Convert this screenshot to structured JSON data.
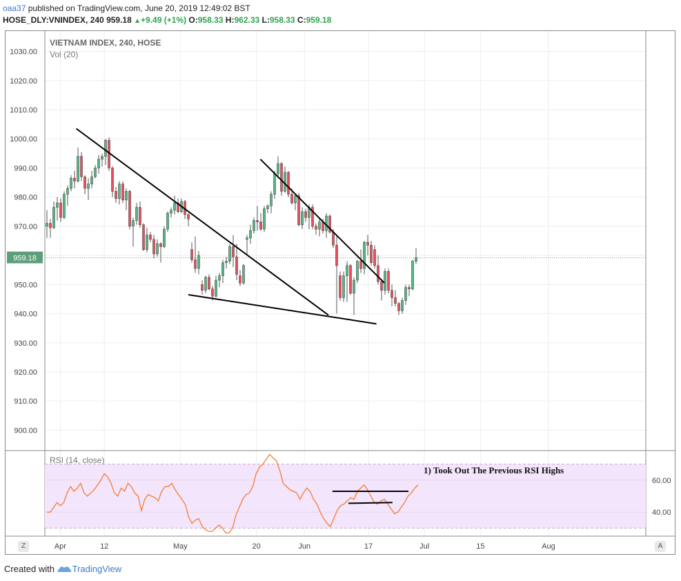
{
  "header": {
    "user": "oaa37",
    "published": "published on TradingView.com, June 20, 2019 12:49:02 BST",
    "symbol": "HOSE_DLY:VNINDEX, 240",
    "last": "959.18",
    "change": "+9.49 (+1%)",
    "o_label": "O:",
    "o": "958.33",
    "h_label": "H:",
    "h": "962.33",
    "l_label": "L:",
    "l": "958.33",
    "c_label": "C:",
    "c": "959.18"
  },
  "footer": {
    "prefix": "Created with",
    "brand": "TradingView"
  },
  "corner_buttons": {
    "left": "Z",
    "right": "A"
  },
  "colors": {
    "up": "#53b987",
    "down": "#eb4d5c",
    "rsi": "#f57c33",
    "rsi_band": "#f3e5fb",
    "price_badge": "#5f9e7c",
    "trendline": "#000000"
  },
  "chart_data": [
    {
      "type": "candlestick",
      "title": "VIETNAM INDEX, 240, HOSE",
      "subtitle": "Vol (20)",
      "ylim": [
        893,
        1037
      ],
      "y_ticks": [
        "1030.00",
        "1020.00",
        "1010.00",
        "1000.00",
        "990.00",
        "980.00",
        "970.00",
        "960.00",
        "950.00",
        "940.00",
        "930.00",
        "920.00",
        "910.00",
        "900.00"
      ],
      "x_ticks": [
        "Apr",
        "12",
        "May",
        "20",
        "Jun",
        "17",
        "Jul",
        "15",
        "Aug"
      ],
      "last_price_label": "959.18",
      "grid": true,
      "candles": [
        [
          970.0,
          975.5,
          966.0,
          971.0
        ],
        [
          971.0,
          972.5,
          966.0,
          969.5
        ],
        [
          969.5,
          978.5,
          969.0,
          976.5
        ],
        [
          976.5,
          980.0,
          972.0,
          978.0
        ],
        [
          978.0,
          979.5,
          971.5,
          973.0
        ],
        [
          973.0,
          982.0,
          972.5,
          981.0
        ],
        [
          981.0,
          984.0,
          977.0,
          983.0
        ],
        [
          983.0,
          987.5,
          982.0,
          986.5
        ],
        [
          986.5,
          989.0,
          983.0,
          985.5
        ],
        [
          985.5,
          997.0,
          985.0,
          994.0
        ],
        [
          994.0,
          995.5,
          985.5,
          987.0
        ],
        [
          987.0,
          987.5,
          981.0,
          983.0
        ],
        [
          983.0,
          986.5,
          979.0,
          984.5
        ],
        [
          984.5,
          989.0,
          983.0,
          987.0
        ],
        [
          987.0,
          991.0,
          986.5,
          990.0
        ],
        [
          990.0,
          994.5,
          988.0,
          993.0
        ],
        [
          993.0,
          995.0,
          990.5,
          994.0
        ],
        [
          994.0,
          1000.0,
          991.0,
          999.5
        ],
        [
          999.5,
          1000.5,
          989.0,
          990.0
        ],
        [
          990.0,
          990.5,
          980.0,
          982.0
        ],
        [
          982.0,
          983.5,
          978.0,
          979.5
        ],
        [
          979.5,
          985.5,
          977.5,
          984.5
        ],
        [
          984.5,
          985.5,
          978.0,
          979.0
        ],
        [
          979.0,
          983.0,
          975.5,
          982.0
        ],
        [
          982.0,
          982.5,
          969.0,
          970.0
        ],
        [
          970.0,
          973.0,
          963.0,
          972.0
        ],
        [
          972.0,
          978.0,
          970.5,
          976.5
        ],
        [
          976.5,
          978.5,
          969.5,
          970.5
        ],
        [
          970.5,
          971.0,
          961.5,
          962.0
        ],
        [
          962.0,
          969.5,
          961.0,
          967.0
        ],
        [
          967.0,
          968.0,
          964.5,
          965.5
        ],
        [
          965.5,
          967.0,
          959.0,
          960.5
        ],
        [
          960.5,
          965.5,
          959.5,
          964.0
        ],
        [
          964.0,
          964.5,
          957.5,
          963.0
        ],
        [
          963.0,
          970.0,
          962.5,
          969.0
        ],
        [
          969.0,
          975.0,
          968.0,
          974.5
        ],
        [
          974.5,
          976.5,
          973.0,
          975.5
        ],
        [
          975.5,
          980.5,
          974.0,
          978.0
        ],
        [
          978.0,
          979.5,
          974.5,
          975.0
        ],
        [
          975.0,
          979.5,
          974.5,
          978.5
        ],
        [
          978.5,
          979.0,
          972.5,
          974.0
        ],
        [
          974.0,
          974.5,
          970.0,
          972.5
        ],
        [
          962.0,
          964.5,
          957.5,
          958.5
        ],
        [
          958.5,
          966.5,
          954.0,
          955.5
        ],
        [
          955.5,
          961.5,
          953.5,
          960.0
        ],
        [
          950.0,
          951.5,
          946.5,
          948.0
        ],
        [
          948.0,
          953.0,
          947.0,
          952.5
        ],
        [
          952.5,
          953.5,
          948.0,
          948.5
        ],
        [
          948.5,
          949.5,
          944.5,
          946.0
        ],
        [
          946.0,
          953.0,
          945.5,
          951.5
        ],
        [
          951.5,
          954.0,
          949.0,
          953.0
        ],
        [
          953.0,
          958.5,
          950.5,
          957.5
        ],
        [
          957.5,
          959.5,
          955.5,
          958.0
        ],
        [
          958.0,
          964.0,
          957.0,
          963.0
        ],
        [
          963.0,
          967.0,
          956.0,
          959.5
        ],
        [
          959.5,
          964.0,
          951.5,
          953.5
        ],
        [
          953.0,
          955.0,
          949.5,
          950.5
        ],
        [
          950.5,
          957.0,
          950.0,
          956.5
        ],
        [
          965.5,
          967.0,
          960.5,
          966.0
        ],
        [
          966.0,
          970.5,
          964.0,
          968.5
        ],
        [
          968.5,
          973.0,
          967.5,
          972.0
        ],
        [
          972.0,
          977.0,
          968.5,
          971.5
        ],
        [
          971.5,
          974.5,
          968.5,
          969.0
        ],
        [
          969.0,
          977.0,
          968.0,
          976.0
        ],
        [
          976.0,
          977.5,
          974.5,
          977.0
        ],
        [
          977.0,
          982.0,
          974.5,
          981.0
        ],
        [
          981.0,
          989.0,
          979.5,
          988.0
        ],
        [
          988.0,
          994.0,
          986.5,
          991.5
        ],
        [
          991.5,
          992.0,
          980.5,
          982.0
        ],
        [
          982.0,
          990.5,
          981.5,
          988.5
        ],
        [
          988.5,
          989.0,
          980.0,
          981.0
        ],
        [
          981.0,
          983.0,
          977.5,
          978.0
        ],
        [
          978.0,
          981.0,
          975.5,
          980.5
        ],
        [
          980.5,
          981.5,
          970.0,
          970.5
        ],
        [
          970.5,
          976.5,
          969.0,
          975.0
        ],
        [
          975.0,
          976.0,
          971.5,
          973.0
        ],
        [
          973.0,
          977.5,
          969.0,
          976.5
        ],
        [
          976.5,
          977.5,
          969.0,
          970.0
        ],
        [
          970.0,
          971.0,
          967.0,
          969.0
        ],
        [
          969.0,
          973.0,
          966.5,
          971.5
        ],
        [
          971.5,
          972.5,
          967.5,
          968.5
        ],
        [
          968.5,
          974.5,
          966.0,
          973.5
        ],
        [
          973.5,
          974.0,
          967.5,
          968.0
        ],
        [
          968.0,
          969.0,
          962.5,
          963.5
        ],
        [
          963.5,
          966.5,
          940.0,
          956.5
        ],
        [
          953.0,
          954.5,
          944.5,
          945.5
        ],
        [
          945.5,
          954.5,
          944.0,
          953.0
        ],
        [
          953.0,
          958.0,
          944.0,
          956.5
        ],
        [
          956.5,
          957.0,
          946.5,
          947.0
        ],
        [
          947.0,
          952.5,
          939.5,
          951.5
        ],
        [
          951.5,
          958.5,
          950.5,
          958.0
        ],
        [
          958.0,
          962.0,
          954.0,
          955.5
        ],
        [
          955.5,
          965.0,
          953.5,
          964.5
        ],
        [
          964.5,
          967.0,
          960.0,
          963.5
        ],
        [
          963.5,
          965.0,
          956.5,
          957.5
        ],
        [
          962.0,
          963.5,
          955.5,
          956.5
        ],
        [
          956.5,
          960.0,
          950.0,
          951.0
        ],
        [
          951.0,
          952.0,
          944.5,
          948.0
        ],
        [
          948.0,
          955.5,
          946.5,
          954.5
        ],
        [
          954.5,
          955.5,
          947.0,
          948.0
        ],
        [
          948.0,
          950.0,
          942.5,
          945.5
        ],
        [
          945.5,
          948.0,
          942.5,
          943.5
        ],
        [
          943.5,
          944.0,
          939.5,
          941.0
        ],
        [
          941.0,
          945.5,
          940.0,
          944.5
        ],
        [
          944.5,
          950.0,
          943.0,
          949.0
        ],
        [
          949.0,
          950.0,
          946.0,
          948.5
        ],
        [
          948.5,
          958.5,
          948.0,
          958.0
        ],
        [
          958.0,
          962.5,
          957.0,
          959.2
        ]
      ],
      "trendlines": [
        {
          "from": [
            "Apr 5",
            1003.5
          ],
          "to": [
            "Jun 7",
            939.5
          ]
        },
        {
          "from": [
            "May 3",
            946.5
          ],
          "to": [
            "Jun 19",
            936.5
          ]
        },
        {
          "from": [
            "May 21",
            993.0
          ],
          "to": [
            "Jun 21",
            950.5
          ]
        }
      ]
    },
    {
      "type": "line",
      "title": "RSI (14, close)",
      "ylim": [
        25,
        78
      ],
      "y_ticks": [
        "60.00",
        "40.00"
      ],
      "band": [
        30,
        70
      ],
      "series": [
        {
          "name": "RSI (14, close)",
          "values": [
            40,
            40,
            43,
            46,
            44,
            46,
            52,
            56,
            53,
            55,
            58,
            52,
            50,
            52,
            54,
            57,
            60,
            64,
            62,
            58,
            52,
            50,
            55,
            53,
            58,
            56,
            52,
            50,
            41,
            48,
            51,
            50,
            49,
            47,
            53,
            56,
            56,
            58,
            54,
            51,
            48,
            45,
            37,
            33,
            35,
            36,
            31,
            29,
            28,
            28,
            30,
            32,
            30,
            27,
            27,
            30,
            38,
            43,
            48,
            51,
            52,
            56,
            64,
            68,
            70,
            73,
            76,
            74,
            72,
            66,
            58,
            56,
            54,
            53,
            52,
            48,
            52,
            55,
            53,
            48,
            45,
            40,
            36,
            33,
            31,
            36,
            41,
            44,
            45,
            47,
            49,
            48,
            53,
            55,
            57,
            54,
            50,
            46,
            45,
            47,
            48,
            45,
            42,
            39,
            40,
            43,
            46,
            50,
            52,
            55,
            57
          ]
        }
      ],
      "annotation": "1) Took Out The Previous RSI Highs",
      "lines": [
        {
          "from": [
            "Jun 8",
            53.0
          ],
          "to": [
            "Jun 27",
            53.0
          ]
        },
        {
          "from": [
            "Jun 12",
            45.5
          ],
          "to": [
            "Jun 23",
            46.0
          ]
        }
      ]
    }
  ]
}
